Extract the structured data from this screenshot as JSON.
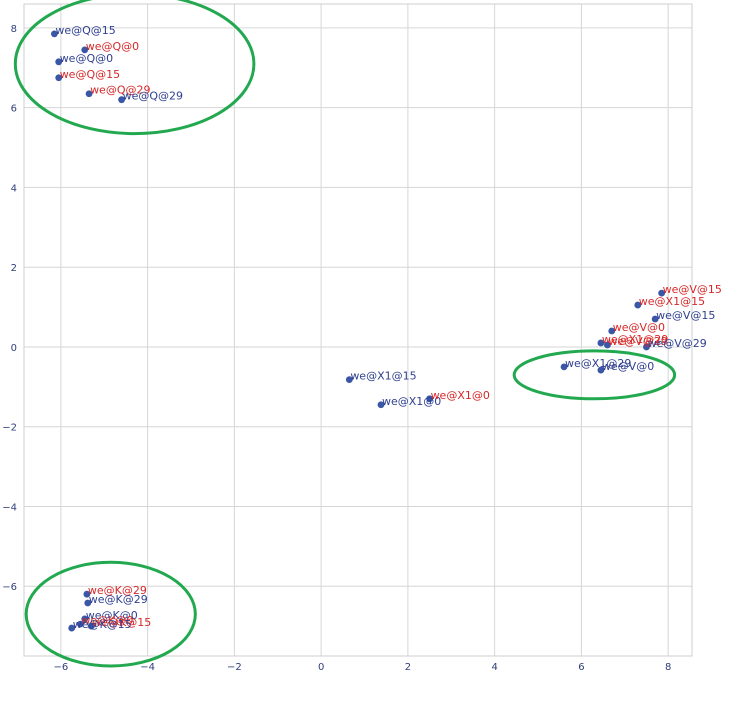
{
  "chart_data": {
    "type": "scatter",
    "title": "",
    "xlabel": "",
    "ylabel": "",
    "xlim": [
      -6.85,
      8.55
    ],
    "ylim": [
      -7.75,
      8.6
    ],
    "grid": true,
    "x_ticks": [
      -6,
      -4,
      -2,
      0,
      2,
      4,
      6,
      8
    ],
    "y_ticks": [
      -6,
      -4,
      -2,
      0,
      2,
      4,
      6,
      8
    ],
    "x_tick_labels": [
      "−6",
      "−4",
      "−2",
      "0",
      "2",
      "4",
      "6",
      "8"
    ],
    "y_tick_labels": [
      "−6",
      "−4",
      "−2",
      "0",
      "2",
      "4",
      "6",
      "8"
    ],
    "colors": {
      "marker": "#3a56a6",
      "label_blue": "#2e3f8f",
      "label_red": "#d62728",
      "circle": "#22a84f",
      "grid": "#d6d6d6",
      "axis": "#cfcfcf"
    },
    "points": [
      {
        "label": "we@Q@15",
        "x": -6.15,
        "y": 7.85,
        "label_color": "blue"
      },
      {
        "label": "we@Q@0",
        "x": -5.45,
        "y": 7.45,
        "label_color": "red"
      },
      {
        "label": "we@Q@0",
        "x": -6.05,
        "y": 7.15,
        "label_color": "blue"
      },
      {
        "label": "we@Q@15",
        "x": -6.05,
        "y": 6.75,
        "label_color": "red"
      },
      {
        "label": "we@Q@29",
        "x": -5.35,
        "y": 6.35,
        "label_color": "red"
      },
      {
        "label": "we@Q@29",
        "x": -4.6,
        "y": 6.2,
        "label_color": "blue"
      },
      {
        "label": "we@V@15",
        "x": 7.85,
        "y": 1.35,
        "label_color": "red"
      },
      {
        "label": "we@X1@15",
        "x": 7.3,
        "y": 1.05,
        "label_color": "red"
      },
      {
        "label": "we@V@15",
        "x": 7.7,
        "y": 0.7,
        "label_color": "blue"
      },
      {
        "label": "we@V@0",
        "x": 6.7,
        "y": 0.4,
        "label_color": "red"
      },
      {
        "label": "we@X1@29",
        "x": 6.45,
        "y": 0.1,
        "label_color": "red"
      },
      {
        "label": "we@V@29",
        "x": 6.6,
        "y": 0.05,
        "label_color": "red"
      },
      {
        "label": "we@V@29",
        "x": 7.5,
        "y": 0.0,
        "label_color": "blue"
      },
      {
        "label": "we@X1@29",
        "x": 5.6,
        "y": -0.5,
        "label_color": "blue"
      },
      {
        "label": "we@V@0",
        "x": 6.45,
        "y": -0.58,
        "label_color": "blue"
      },
      {
        "label": "we@X1@15",
        "x": 0.65,
        "y": -0.82,
        "label_color": "blue"
      },
      {
        "label": "we@X1@0",
        "x": 1.38,
        "y": -1.45,
        "label_color": "blue"
      },
      {
        "label": "we@X1@0",
        "x": 2.5,
        "y": -1.3,
        "label_color": "red"
      },
      {
        "label": "we@K@29",
        "x": -5.4,
        "y": -6.2,
        "label_color": "red"
      },
      {
        "label": "we@K@29",
        "x": -5.38,
        "y": -6.42,
        "label_color": "blue"
      },
      {
        "label": "we@K@0",
        "x": -5.45,
        "y": -6.82,
        "label_color": "blue"
      },
      {
        "label": "we@K@0",
        "x": -5.55,
        "y": -6.95,
        "label_color": "red"
      },
      {
        "label": "we@K@15",
        "x": -5.3,
        "y": -7.0,
        "label_color": "red"
      },
      {
        "label": "we@K@15",
        "x": -5.75,
        "y": -7.05,
        "label_color": "blue"
      }
    ],
    "annotations": [
      {
        "shape": "ellipse",
        "cx": -4.3,
        "cy": 7.1,
        "rx": 2.75,
        "ry": 1.75
      },
      {
        "shape": "ellipse",
        "cx": 6.3,
        "cy": -0.7,
        "rx": 1.85,
        "ry": 0.6
      },
      {
        "shape": "ellipse",
        "cx": -4.85,
        "cy": -6.7,
        "rx": 1.95,
        "ry": 1.3
      }
    ]
  }
}
